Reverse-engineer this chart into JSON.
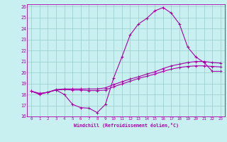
{
  "xlabel": "Windchill (Refroidissement éolien,°C)",
  "bg_color": "#c8f0f0",
  "line_color": "#aa00aa",
  "grid_color": "#99cccc",
  "spine_color": "#aa00aa",
  "xlim": [
    -0.5,
    23.5
  ],
  "ylim": [
    16,
    26.2
  ],
  "xticks": [
    0,
    1,
    2,
    3,
    4,
    5,
    6,
    7,
    8,
    9,
    10,
    11,
    12,
    13,
    14,
    15,
    16,
    17,
    18,
    19,
    20,
    21,
    22,
    23
  ],
  "yticks": [
    16,
    17,
    18,
    19,
    20,
    21,
    22,
    23,
    24,
    25,
    26
  ],
  "curve1_x": [
    0,
    1,
    2,
    3,
    4,
    5,
    6,
    7,
    8,
    9,
    10,
    11,
    12,
    13,
    14,
    15,
    16,
    17,
    18,
    19,
    20,
    21,
    22,
    23
  ],
  "curve1_y": [
    18.3,
    18.0,
    18.2,
    18.4,
    18.0,
    17.1,
    16.8,
    16.75,
    16.35,
    17.1,
    19.5,
    21.4,
    23.4,
    24.4,
    24.9,
    25.6,
    25.9,
    25.4,
    24.4,
    22.3,
    21.4,
    20.9,
    20.1,
    20.1
  ],
  "curve2_x": [
    0,
    1,
    2,
    3,
    4,
    5,
    6,
    7,
    8,
    9,
    10,
    11,
    12,
    13,
    14,
    15,
    16,
    17,
    18,
    19,
    20,
    21,
    22,
    23
  ],
  "curve2_y": [
    18.3,
    18.1,
    18.2,
    18.45,
    18.5,
    18.5,
    18.5,
    18.5,
    18.5,
    18.6,
    18.9,
    19.15,
    19.4,
    19.6,
    19.85,
    20.05,
    20.35,
    20.6,
    20.75,
    20.9,
    21.0,
    21.0,
    20.9,
    20.85
  ],
  "curve3_x": [
    0,
    1,
    2,
    3,
    4,
    5,
    6,
    7,
    8,
    9,
    10,
    11,
    12,
    13,
    14,
    15,
    16,
    17,
    18,
    19,
    20,
    21,
    22,
    23
  ],
  "curve3_y": [
    18.3,
    18.05,
    18.2,
    18.4,
    18.45,
    18.4,
    18.4,
    18.35,
    18.35,
    18.4,
    18.7,
    18.95,
    19.2,
    19.45,
    19.65,
    19.85,
    20.1,
    20.3,
    20.45,
    20.55,
    20.6,
    20.6,
    20.55,
    20.5
  ]
}
